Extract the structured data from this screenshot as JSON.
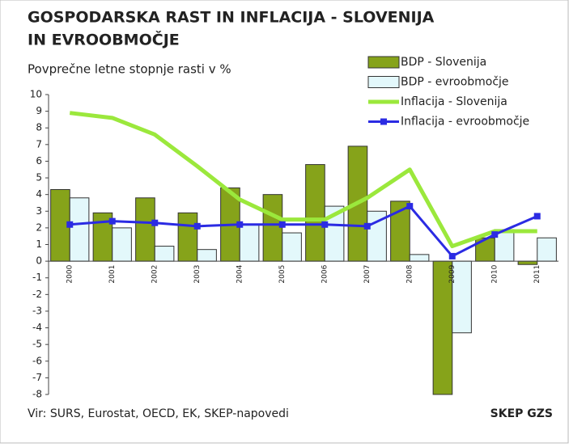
{
  "chart_data": {
    "type": "bar-line",
    "title": [
      "GOSPODARSKA RAST IN INFLACIJA - SLOVENIJA",
      "IN EVROOBMOČJE"
    ],
    "subtitle": "Povprečne letne stopnje rasti v %",
    "source": "Vir: SURS, Eurostat, OECD, EK, SKEP-napovedi",
    "brand": "SKEP GZS",
    "categories": [
      "2000",
      "2001",
      "2002",
      "2003",
      "2004",
      "2005",
      "2006",
      "2007",
      "2008",
      "2009",
      "2010",
      "2011"
    ],
    "series": [
      {
        "name": "BDP - Slovenija",
        "kind": "bar",
        "color": "#86a31a",
        "values": [
          4.3,
          2.9,
          3.8,
          2.9,
          4.4,
          4.0,
          5.8,
          6.9,
          3.6,
          -8.0,
          1.4,
          -0.2
        ]
      },
      {
        "name": "BDP - evroobmočje",
        "kind": "bar",
        "color": "#e3f8fb",
        "values": [
          3.8,
          2.0,
          0.9,
          0.7,
          2.2,
          1.7,
          3.3,
          3.0,
          0.4,
          -4.3,
          1.9,
          1.4
        ]
      },
      {
        "name": "Inflacija - Slovenija",
        "kind": "line",
        "color": "#9be83c",
        "values": [
          8.9,
          8.6,
          7.6,
          5.7,
          3.7,
          2.5,
          2.5,
          3.8,
          5.5,
          0.9,
          1.8,
          1.8
        ]
      },
      {
        "name": "Inflacija - evroobmočje",
        "kind": "line",
        "color": "#2b2be3",
        "marker": true,
        "values": [
          2.2,
          2.4,
          2.3,
          2.1,
          2.2,
          2.2,
          2.2,
          2.1,
          3.3,
          0.3,
          1.6,
          2.7
        ]
      }
    ],
    "ylim": [
      -8,
      10
    ],
    "yticks": [
      -8,
      -7,
      -6,
      -5,
      -4,
      -3,
      -2,
      -1,
      0,
      1,
      2,
      3,
      4,
      5,
      6,
      7,
      8,
      9,
      10
    ]
  }
}
